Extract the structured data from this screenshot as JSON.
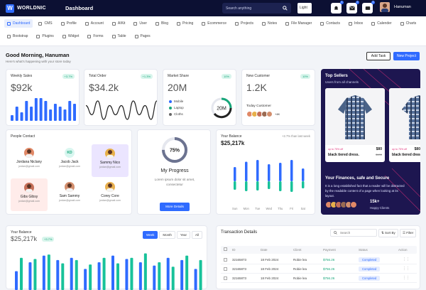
{
  "topbar": {
    "brand": "WORLDNIC",
    "page_title": "Dashboard",
    "search_placeholder": "Search anything",
    "theme": "Light",
    "badges": [
      "4",
      "2",
      "3"
    ],
    "user": "Hanuman"
  },
  "nav": {
    "row1": [
      "Dashboard",
      "CMS",
      "Profile",
      "Account",
      "AIKit",
      "User",
      "Blog",
      "Pricing",
      "Ecommerce",
      "Projects",
      "Notes",
      "File Manager",
      "Contacts",
      "Inbox",
      "Calender",
      "Charts"
    ],
    "row2": [
      "Bootstrap",
      "Plugins",
      "Widget",
      "Forms",
      "Table",
      "Pages"
    ]
  },
  "greeting": {
    "title": "Good Morning, Hanuman",
    "subtitle": "Here's what's happening with your store today",
    "add_task": "Add Task",
    "new_project": "New Project"
  },
  "weekly_sales": {
    "title": "Weekly Sales",
    "value": "$92k",
    "badge": "+3.7%"
  },
  "total_order": {
    "title": "Total Order",
    "value": "$34.2k",
    "badge": "+1.3%"
  },
  "market_share": {
    "title": "Market Share",
    "value": "20M",
    "badge": "10%",
    "legend": [
      "Mobile",
      "Laptop",
      "Cloths"
    ],
    "ring_label": "20M",
    "colors": [
      "#2f6bff",
      "#18a67a",
      "#666666"
    ]
  },
  "new_customer": {
    "title": "New Customer",
    "value": "1.2K",
    "badge": "10%",
    "sub": "Today Customer",
    "more": "+4K"
  },
  "people": {
    "title": "People Contact",
    "list": [
      {
        "name": "Jordana Niclany",
        "email": "jordan@gmail.com",
        "bg": "#ffffff",
        "avbg": "#e08866"
      },
      {
        "name": "Jacob Jack",
        "email": "jordan@gmail.com",
        "bg": "#ffffff",
        "initials": "KD",
        "avbg": "#d8f6ef"
      },
      {
        "name": "Sammy Nico",
        "email": "jordan@gmail.com",
        "bg": "#ebe5ff",
        "avbg": "#e7b04a"
      },
      {
        "name": "Gibs Gibsy",
        "email": "jordan@gmail.com",
        "bg": "#ffecea",
        "avbg": "#c56f58"
      },
      {
        "name": "Sam Sammy",
        "email": "jordan@gmail.com",
        "bg": "#ffffff",
        "avbg": "#d28e6d"
      },
      {
        "name": "Corey Core",
        "email": "jordan@gmail.com",
        "bg": "#ffffff",
        "avbg": "#e8b04f"
      }
    ]
  },
  "progress": {
    "percent": 75,
    "label": "75%",
    "title": "My Progress",
    "text": "Lorem ipsum dolor sit amet, consectetur",
    "button": "More Details"
  },
  "balance_small": {
    "title": "Your Balance",
    "value": "$25,217k",
    "note": "+2.7% than last week",
    "days": [
      "Sun",
      "Mon",
      "Tue",
      "Wed",
      "Thu",
      "Fri",
      "Sat"
    ]
  },
  "top_sellers": {
    "title": "Top Sellers",
    "subtitle": "Users from all channels",
    "products": [
      {
        "off": "up to 75% off",
        "name": "black tiered dress.",
        "price": "$80",
        "old": "$100"
      },
      {
        "off": "up to 75% off",
        "name": "black tiered dres",
        "price": "$80",
        "old": "$100"
      }
    ],
    "fin_title": "Your Finances, safe and Secure",
    "fin_text": "It is a long established fact that a reader will be distracted by the readable content of a page when looking at its layout.",
    "clients": "15k+",
    "clients_label": "Happy Clients"
  },
  "balance_big": {
    "title": "Your Balance",
    "value": "$25,217k",
    "badge": "+3.7%",
    "tabs": [
      "Week",
      "Month",
      "Year",
      "All"
    ]
  },
  "transactions": {
    "title": "Transaction Details",
    "search": "Search",
    "sort": "Sort By",
    "filter": "Filter",
    "headers": [
      "ID",
      "Date",
      "Client",
      "Payment",
      "Status",
      "Action"
    ],
    "rows": [
      {
        "id": "32165873",
        "date": "18 Feb 2024",
        "client": "Robie lea",
        "payment": "$756.26",
        "status": "Completed"
      },
      {
        "id": "32165873",
        "date": "18 Feb 2024",
        "client": "Robie lea",
        "payment": "$756.26",
        "status": "Completed"
      },
      {
        "id": "32165873",
        "date": "18 Feb 2024",
        "client": "Robie lea",
        "payment": "$756.26",
        "status": "Completed"
      }
    ]
  },
  "chart_data": [
    {
      "type": "bar",
      "title": "Weekly Sales",
      "values": [
        2,
        5,
        3,
        7,
        5,
        8,
        8,
        7,
        4,
        6,
        5,
        4,
        7,
        6
      ]
    },
    {
      "type": "line",
      "title": "Total Order",
      "values": [
        5,
        3,
        6,
        2,
        5,
        3,
        5,
        2,
        6,
        3,
        5,
        2,
        6
      ]
    },
    {
      "type": "bar",
      "title": "Your Balance",
      "categories": [
        "Sun",
        "Mon",
        "Tue",
        "Wed",
        "Thu",
        "Fri",
        "Sat"
      ],
      "series": [
        {
          "values": [
            40,
            55,
            60,
            48,
            52,
            60,
            36
          ]
        },
        {
          "values": [
            -24,
            -28,
            -26,
            -22,
            -28,
            -30,
            -20
          ]
        }
      ]
    },
    {
      "type": "bar",
      "title": "Your Balance",
      "series": [
        {
          "values": [
            34,
            50,
            62,
            54,
            58,
            38,
            50,
            62,
            56,
            50,
            44,
            58,
            54,
            38
          ]
        },
        {
          "values": [
            58,
            56,
            64,
            48,
            54,
            46,
            58,
            48,
            58,
            66,
            50,
            42,
            62,
            54
          ]
        }
      ]
    }
  ]
}
